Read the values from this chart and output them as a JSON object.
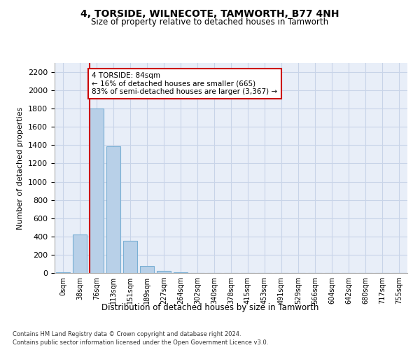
{
  "title": "4, TORSIDE, WILNECOTE, TAMWORTH, B77 4NH",
  "subtitle": "Size of property relative to detached houses in Tamworth",
  "xlabel": "Distribution of detached houses by size in Tamworth",
  "ylabel": "Number of detached properties",
  "bar_labels": [
    "0sqm",
    "38sqm",
    "76sqm",
    "113sqm",
    "151sqm",
    "189sqm",
    "227sqm",
    "264sqm",
    "302sqm",
    "340sqm",
    "378sqm",
    "415sqm",
    "453sqm",
    "491sqm",
    "529sqm",
    "566sqm",
    "604sqm",
    "642sqm",
    "680sqm",
    "717sqm",
    "755sqm"
  ],
  "bar_values": [
    10,
    420,
    1800,
    1390,
    350,
    75,
    25,
    5,
    0,
    0,
    0,
    0,
    0,
    0,
    0,
    0,
    0,
    0,
    0,
    0,
    0
  ],
  "bar_color": "#b8d0e8",
  "bar_edge_color": "#7aafd4",
  "vline_x": 2,
  "vline_color": "#cc0000",
  "annotation_text": "4 TORSIDE: 84sqm\n← 16% of detached houses are smaller (665)\n83% of semi-detached houses are larger (3,367) →",
  "annotation_box_color": "#ffffff",
  "annotation_border_color": "#cc0000",
  "ylim": [
    0,
    2300
  ],
  "yticks": [
    0,
    200,
    400,
    600,
    800,
    1000,
    1200,
    1400,
    1600,
    1800,
    2000,
    2200
  ],
  "grid_color": "#c8d4e8",
  "bg_color": "#e8eef8",
  "footer_line1": "Contains HM Land Registry data © Crown copyright and database right 2024.",
  "footer_line2": "Contains public sector information licensed under the Open Government Licence v3.0."
}
